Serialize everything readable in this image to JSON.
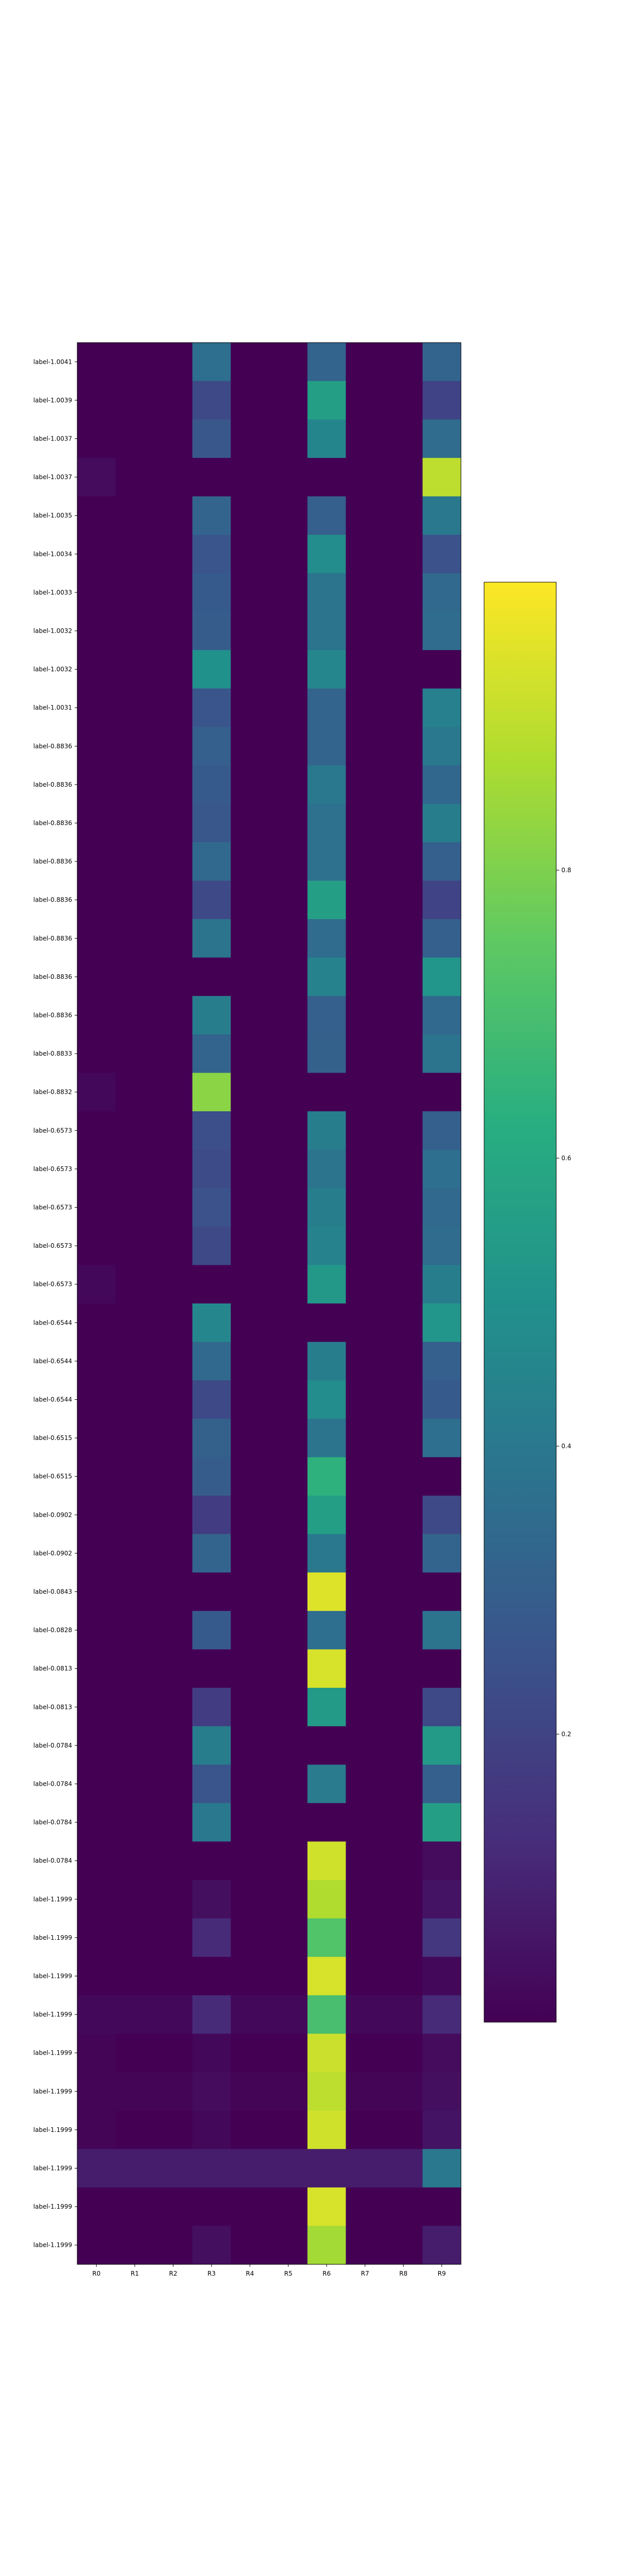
{
  "chart_data": {
    "type": "heatmap",
    "title": "",
    "xlabel": "",
    "ylabel": "",
    "x_categories": [
      "R0",
      "R1",
      "R2",
      "R3",
      "R4",
      "R5",
      "R6",
      "R7",
      "R8",
      "R9"
    ],
    "y_categories": [
      "label-1.0041",
      "label-1.0039",
      "label-1.0037",
      "label-1.0037",
      "label-1.0035",
      "label-1.0034",
      "label-1.0033",
      "label-1.0032",
      "label-1.0032",
      "label-1.0031",
      "label-0.8836",
      "label-0.8836",
      "label-0.8836",
      "label-0.8836",
      "label-0.8836",
      "label-0.8836",
      "label-0.8836",
      "label-0.8836",
      "label-0.8833",
      "label-0.8832",
      "label-0.6573",
      "label-0.6573",
      "label-0.6573",
      "label-0.6573",
      "label-0.6573",
      "label-0.6544",
      "label-0.6544",
      "label-0.6544",
      "label-0.6515",
      "label-0.6515",
      "label-0.0902",
      "label-0.0902",
      "label-0.0843",
      "label-0.0828",
      "label-0.0813",
      "label-0.0813",
      "label-0.0784",
      "label-0.0784",
      "label-0.0784",
      "label-0.0784",
      "label-1.1999",
      "label-1.1999",
      "label-1.1999",
      "label-1.1999",
      "label-1.1999",
      "label-1.1999",
      "label-1.1999",
      "label-1.1999",
      "label-1.1999",
      "label-1.1999"
    ],
    "values": [
      [
        0.0,
        0.0,
        0.0,
        0.36,
        0.0,
        0.0,
        0.32,
        0.0,
        0.0,
        0.32
      ],
      [
        0.0,
        0.0,
        0.0,
        0.22,
        0.0,
        0.0,
        0.56,
        0.0,
        0.0,
        0.2
      ],
      [
        0.0,
        0.0,
        0.0,
        0.27,
        0.0,
        0.0,
        0.45,
        0.0,
        0.0,
        0.35
      ],
      [
        0.03,
        0.0,
        0.0,
        0.0,
        0.0,
        0.0,
        0.0,
        0.0,
        0.0,
        0.9
      ],
      [
        0.0,
        0.0,
        0.0,
        0.32,
        0.0,
        0.0,
        0.3,
        0.0,
        0.0,
        0.4
      ],
      [
        0.0,
        0.0,
        0.0,
        0.26,
        0.0,
        0.0,
        0.48,
        0.0,
        0.0,
        0.25
      ],
      [
        0.0,
        0.0,
        0.0,
        0.28,
        0.0,
        0.0,
        0.38,
        0.0,
        0.0,
        0.34
      ],
      [
        0.0,
        0.0,
        0.0,
        0.29,
        0.0,
        0.0,
        0.38,
        0.0,
        0.0,
        0.35
      ],
      [
        0.0,
        0.0,
        0.0,
        0.5,
        0.0,
        0.0,
        0.46,
        0.0,
        0.0,
        0.0
      ],
      [
        0.0,
        0.0,
        0.0,
        0.26,
        0.0,
        0.0,
        0.32,
        0.0,
        0.0,
        0.43
      ],
      [
        0.0,
        0.0,
        0.0,
        0.3,
        0.0,
        0.0,
        0.32,
        0.0,
        0.0,
        0.4
      ],
      [
        0.0,
        0.0,
        0.0,
        0.28,
        0.0,
        0.0,
        0.4,
        0.0,
        0.0,
        0.33
      ],
      [
        0.0,
        0.0,
        0.0,
        0.27,
        0.0,
        0.0,
        0.37,
        0.0,
        0.0,
        0.42
      ],
      [
        0.0,
        0.0,
        0.0,
        0.34,
        0.0,
        0.0,
        0.37,
        0.0,
        0.0,
        0.3
      ],
      [
        0.0,
        0.0,
        0.0,
        0.22,
        0.0,
        0.0,
        0.56,
        0.0,
        0.0,
        0.2
      ],
      [
        0.0,
        0.0,
        0.0,
        0.38,
        0.0,
        0.0,
        0.35,
        0.0,
        0.0,
        0.3
      ],
      [
        0.0,
        0.0,
        0.0,
        0.0,
        0.0,
        0.0,
        0.44,
        0.0,
        0.0,
        0.52
      ],
      [
        0.0,
        0.0,
        0.0,
        0.42,
        0.0,
        0.0,
        0.3,
        0.0,
        0.0,
        0.34
      ],
      [
        0.0,
        0.0,
        0.0,
        0.32,
        0.0,
        0.0,
        0.31,
        0.0,
        0.0,
        0.38
      ],
      [
        0.02,
        0.0,
        0.0,
        0.82,
        0.0,
        0.0,
        0.0,
        0.0,
        0.0,
        0.0
      ],
      [
        0.0,
        0.0,
        0.0,
        0.24,
        0.0,
        0.0,
        0.42,
        0.0,
        0.0,
        0.3
      ],
      [
        0.0,
        0.0,
        0.0,
        0.23,
        0.0,
        0.0,
        0.38,
        0.0,
        0.0,
        0.36
      ],
      [
        0.0,
        0.0,
        0.0,
        0.25,
        0.0,
        0.0,
        0.42,
        0.0,
        0.0,
        0.34
      ],
      [
        0.0,
        0.0,
        0.0,
        0.22,
        0.0,
        0.0,
        0.44,
        0.0,
        0.0,
        0.35
      ],
      [
        0.02,
        0.0,
        0.0,
        0.0,
        0.0,
        0.0,
        0.53,
        0.0,
        0.0,
        0.42
      ],
      [
        0.0,
        0.0,
        0.0,
        0.46,
        0.0,
        0.0,
        0.0,
        0.0,
        0.0,
        0.52
      ],
      [
        0.0,
        0.0,
        0.0,
        0.34,
        0.0,
        0.0,
        0.42,
        0.0,
        0.0,
        0.3
      ],
      [
        0.0,
        0.0,
        0.0,
        0.22,
        0.0,
        0.0,
        0.48,
        0.0,
        0.0,
        0.28
      ],
      [
        0.0,
        0.0,
        0.0,
        0.31,
        0.0,
        0.0,
        0.38,
        0.0,
        0.0,
        0.36
      ],
      [
        0.0,
        0.0,
        0.0,
        0.29,
        0.0,
        0.0,
        0.64,
        0.0,
        0.0,
        0.0
      ],
      [
        0.0,
        0.0,
        0.0,
        0.18,
        0.0,
        0.0,
        0.56,
        0.0,
        0.0,
        0.22
      ],
      [
        0.0,
        0.0,
        0.0,
        0.32,
        0.0,
        0.0,
        0.4,
        0.0,
        0.0,
        0.32
      ],
      [
        0.0,
        0.0,
        0.0,
        0.0,
        0.0,
        0.0,
        0.95,
        0.0,
        0.0,
        0.0
      ],
      [
        0.0,
        0.0,
        0.0,
        0.28,
        0.0,
        0.0,
        0.36,
        0.0,
        0.0,
        0.38
      ],
      [
        0.0,
        0.0,
        0.0,
        0.0,
        0.0,
        0.0,
        0.94,
        0.0,
        0.0,
        0.0
      ],
      [
        0.0,
        0.0,
        0.0,
        0.18,
        0.0,
        0.0,
        0.54,
        0.0,
        0.0,
        0.22
      ],
      [
        0.0,
        0.0,
        0.0,
        0.42,
        0.0,
        0.0,
        0.0,
        0.0,
        0.0,
        0.54
      ],
      [
        0.0,
        0.0,
        0.0,
        0.26,
        0.0,
        0.0,
        0.41,
        0.0,
        0.0,
        0.3
      ],
      [
        0.0,
        0.0,
        0.0,
        0.4,
        0.0,
        0.0,
        0.0,
        0.0,
        0.0,
        0.56
      ],
      [
        0.0,
        0.0,
        0.0,
        0.0,
        0.0,
        0.0,
        0.93,
        0.0,
        0.0,
        0.03
      ],
      [
        0.0,
        0.0,
        0.0,
        0.04,
        0.0,
        0.0,
        0.88,
        0.0,
        0.0,
        0.05
      ],
      [
        0.0,
        0.0,
        0.0,
        0.12,
        0.0,
        0.0,
        0.72,
        0.0,
        0.0,
        0.16
      ],
      [
        0.0,
        0.0,
        0.0,
        0.0,
        0.0,
        0.0,
        0.94,
        0.0,
        0.0,
        0.02
      ],
      [
        0.02,
        0.02,
        0.02,
        0.12,
        0.02,
        0.02,
        0.7,
        0.02,
        0.02,
        0.12
      ],
      [
        0.01,
        0.0,
        0.0,
        0.02,
        0.0,
        0.0,
        0.92,
        0.0,
        0.0,
        0.03
      ],
      [
        0.01,
        0.01,
        0.01,
        0.03,
        0.01,
        0.01,
        0.9,
        0.01,
        0.01,
        0.04
      ],
      [
        0.01,
        0.0,
        0.0,
        0.02,
        0.0,
        0.0,
        0.93,
        0.0,
        0.0,
        0.05
      ],
      [
        0.08,
        0.08,
        0.08,
        0.08,
        0.08,
        0.08,
        0.08,
        0.08,
        0.08,
        0.4
      ],
      [
        0.0,
        0.0,
        0.0,
        0.0,
        0.0,
        0.0,
        0.94,
        0.0,
        0.0,
        0.0
      ],
      [
        0.0,
        0.0,
        0.0,
        0.04,
        0.0,
        0.0,
        0.86,
        0.0,
        0.0,
        0.08
      ]
    ],
    "colormap": "viridis",
    "color_range": [
      0,
      1
    ],
    "colorbar_ticks": [
      "0.2",
      "0.4",
      "0.6",
      "0.8"
    ],
    "colorbar_tick_values": [
      0.2,
      0.4,
      0.6,
      0.8
    ],
    "grid": false,
    "legend": "colorbar-right"
  }
}
